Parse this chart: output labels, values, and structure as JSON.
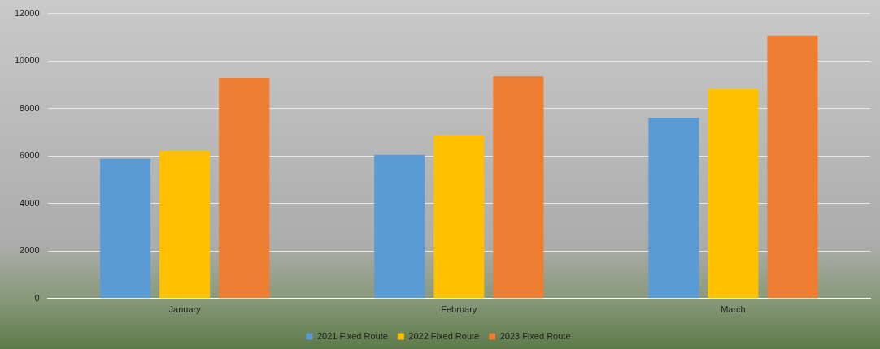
{
  "chart_data": {
    "type": "bar",
    "categories": [
      "January",
      "February",
      "March"
    ],
    "series": [
      {
        "name": "2021 Fixed Route",
        "color": "#5b9bd5",
        "values": [
          5880,
          6050,
          7600
        ]
      },
      {
        "name": "2022 Fixed Route",
        "color": "#ffc000",
        "values": [
          6220,
          6880,
          8830
        ]
      },
      {
        "name": "2023 Fixed Route",
        "color": "#ed7d31",
        "values": [
          9290,
          9350,
          11070
        ]
      }
    ],
    "ylim": [
      0,
      12000
    ],
    "yticks": [
      0,
      2000,
      4000,
      6000,
      8000,
      10000,
      12000
    ],
    "grid": "y",
    "legend": "bottom"
  }
}
